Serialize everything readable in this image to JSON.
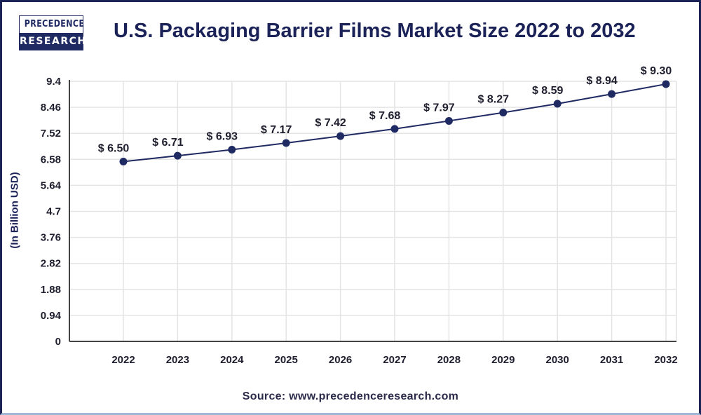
{
  "logo": {
    "line1": "PRECEDENCE",
    "line2": "RESEARCH"
  },
  "source": "Source: www.precedenceresearch.com",
  "colors": {
    "line": "#1f2a63",
    "marker": "#1f2a63",
    "grid": "#e4e4e4",
    "axis": "#444444",
    "border": "#1b2257"
  },
  "chart_data": {
    "type": "line",
    "title": "U.S. Packaging Barrier Films Market Size 2022 to 2032",
    "xlabel": "",
    "ylabel": "(In Billion USD)",
    "categories": [
      "2022",
      "2023",
      "2024",
      "2025",
      "2026",
      "2027",
      "2028",
      "2029",
      "2030",
      "2031",
      "2032"
    ],
    "series": [
      {
        "name": "Market Size",
        "values": [
          6.5,
          6.71,
          6.93,
          7.17,
          7.42,
          7.68,
          7.97,
          8.27,
          8.59,
          8.94,
          9.3
        ],
        "labels": [
          "$ 6.50",
          "$ 6.71",
          "$ 6.93",
          "$ 7.17",
          "$ 7.42",
          "$ 7.68",
          "$ 7.97",
          "$ 8.27",
          "$ 8.59",
          "$ 8.94",
          "$ 9.30"
        ]
      }
    ],
    "yticks": [
      "0",
      "0.94",
      "1.88",
      "2.82",
      "3.76",
      "4.7",
      "5.64",
      "6.58",
      "7.52",
      "8.46",
      "9.4"
    ],
    "ylim": [
      0,
      9.4
    ],
    "grid": true,
    "legend": "none"
  }
}
